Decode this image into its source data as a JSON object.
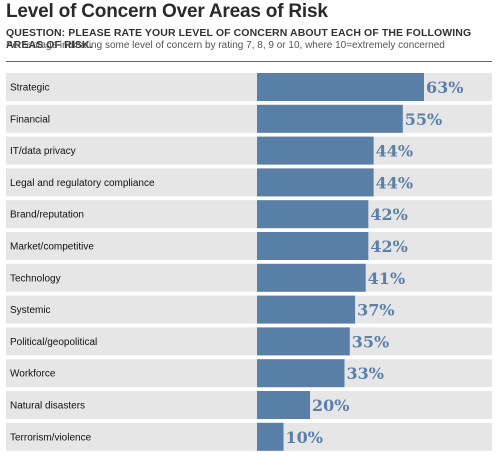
{
  "header": {
    "title": "Level of Concern Over Areas of Risk",
    "question": "QUESTION: PLEASE RATE YOUR LEVEL OF CONCERN ABOUT EACH OF THE FOLLOWING AREAS OF RISK.",
    "subtitle": "Percentage indicating some level of concern by rating 7, 8, 9 or 10, where 10=extremely concerned"
  },
  "colors": {
    "bar": "#5a7fa7",
    "row_background": "#e6e6e6",
    "value_label": "#5b7fa8"
  },
  "chart_data": {
    "type": "bar",
    "orientation": "horizontal",
    "categories": [
      "Strategic",
      "Financial",
      "IT/data privacy",
      "Legal and regulatory compliance",
      "Brand/reputation",
      "Market/competitive",
      "Technology",
      "Systemic",
      "Political/geopolitical",
      "Workforce",
      "Natural disasters",
      "Terrorism/violence"
    ],
    "values": [
      63,
      55,
      44,
      44,
      42,
      42,
      41,
      37,
      35,
      33,
      20,
      10
    ],
    "value_labels": [
      "63%",
      "55%",
      "44%",
      "44%",
      "42%",
      "42%",
      "41%",
      "37%",
      "35%",
      "33%",
      "20%",
      "10%"
    ],
    "unit": "%",
    "xlim": [
      0,
      100
    ],
    "grid": false,
    "legend": "none"
  }
}
